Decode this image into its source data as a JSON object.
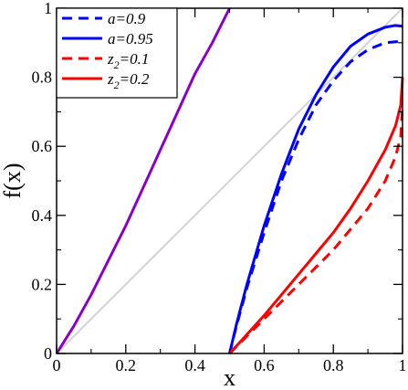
{
  "chart_data": {
    "type": "line",
    "xlabel": "x",
    "ylabel": "f(x)",
    "xlim": [
      0,
      1
    ],
    "ylim": [
      0,
      1
    ],
    "x_ticks": [
      "0",
      "0.2",
      "0.4",
      "0.6",
      "0.8",
      "1"
    ],
    "y_ticks": [
      "0",
      "0.2",
      "0.4",
      "0.6",
      "0.8",
      "1"
    ],
    "legend_position": "top-left",
    "series": [
      {
        "name": "a=0.9",
        "legend_main": "a=0.9",
        "legend_sub": "",
        "legend_tail": "",
        "in_legend": true,
        "color": "#0000ff",
        "dash": "dashed",
        "x": [
          0.5,
          0.52,
          0.55,
          0.6,
          0.65,
          0.7,
          0.75,
          0.8,
          0.85,
          0.9,
          0.95,
          0.98,
          1.0
        ],
        "y": [
          0.0,
          0.08,
          0.19,
          0.35,
          0.5,
          0.62,
          0.72,
          0.79,
          0.845,
          0.88,
          0.9,
          0.903,
          0.905
        ]
      },
      {
        "name": "a=0.95",
        "legend_main": "a=0.95",
        "legend_sub": "",
        "legend_tail": "",
        "in_legend": true,
        "color": "#0000ff",
        "dash": "solid",
        "x": [
          0.5,
          0.52,
          0.55,
          0.6,
          0.65,
          0.7,
          0.75,
          0.8,
          0.85,
          0.9,
          0.95,
          0.98,
          1.0
        ],
        "y": [
          0.0,
          0.085,
          0.2,
          0.37,
          0.52,
          0.65,
          0.75,
          0.83,
          0.89,
          0.925,
          0.945,
          0.95,
          0.948
        ]
      },
      {
        "name": "z2=0.1",
        "legend_main": "z",
        "legend_sub": "2",
        "legend_tail": "=0.1",
        "in_legend": true,
        "color": "#ff0000",
        "dash": "dashed",
        "x": [
          0.5,
          0.55,
          0.6,
          0.65,
          0.7,
          0.75,
          0.8,
          0.85,
          0.9,
          0.95,
          0.98,
          0.995,
          1.0
        ],
        "y": [
          0.0,
          0.05,
          0.1,
          0.15,
          0.2,
          0.25,
          0.3,
          0.36,
          0.42,
          0.5,
          0.57,
          0.63,
          0.72
        ]
      },
      {
        "name": "z2=0.2",
        "legend_main": "z",
        "legend_sub": "2",
        "legend_tail": "=0.2",
        "in_legend": true,
        "color": "#ff0000",
        "dash": "solid",
        "x": [
          0.5,
          0.55,
          0.6,
          0.65,
          0.7,
          0.75,
          0.8,
          0.85,
          0.9,
          0.95,
          0.98,
          0.995,
          1.0
        ],
        "y": [
          0.0,
          0.055,
          0.11,
          0.17,
          0.23,
          0.29,
          0.35,
          0.42,
          0.5,
          0.59,
          0.66,
          0.72,
          0.8
        ]
      },
      {
        "name": "",
        "in_legend": false,
        "color": "#8b00c8",
        "dash": "solid",
        "x": [
          0.0,
          0.05,
          0.1,
          0.15,
          0.2,
          0.25,
          0.3,
          0.35,
          0.4,
          0.45,
          0.5
        ],
        "y": [
          0.0,
          0.08,
          0.17,
          0.27,
          0.37,
          0.48,
          0.59,
          0.7,
          0.81,
          0.9,
          1.0
        ]
      },
      {
        "name": "",
        "in_legend": false,
        "color": "#d3d3d3",
        "dash": "solid",
        "x": [
          0.0,
          1.0
        ],
        "y": [
          0.0,
          1.0
        ]
      }
    ]
  }
}
